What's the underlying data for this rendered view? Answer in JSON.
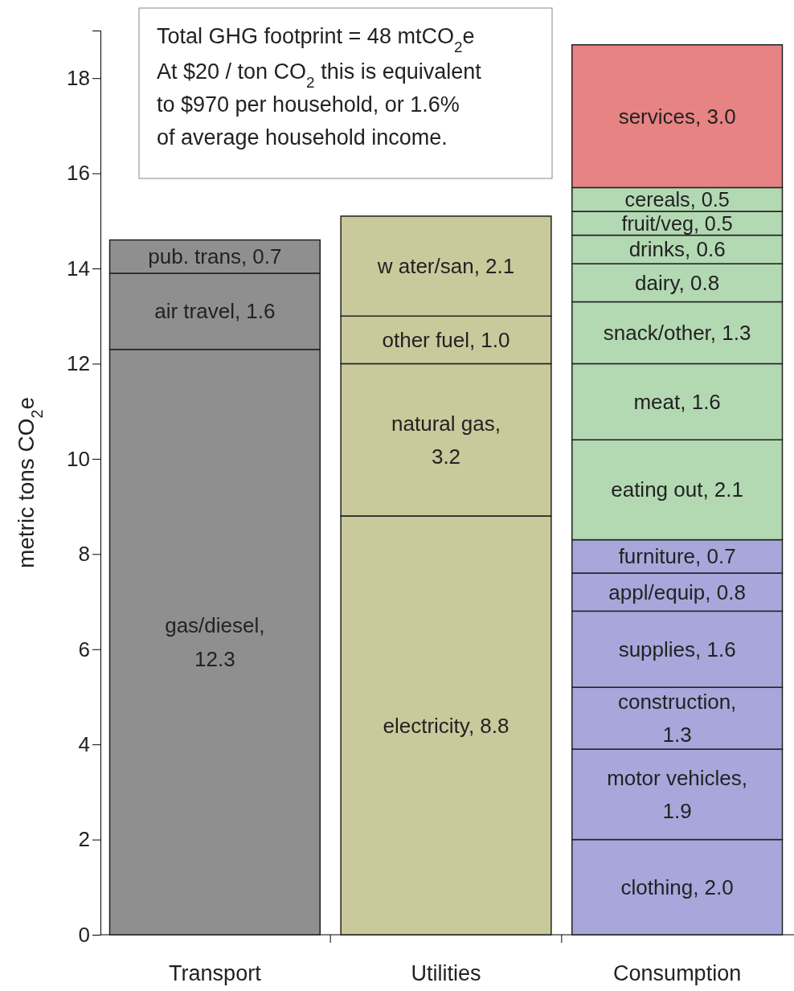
{
  "chart_data": {
    "type": "bar",
    "stacked": true,
    "categories": [
      "Transport",
      "Utilities",
      "Consumption"
    ],
    "ylabel": "metric tons CO$_{2}$e",
    "ylim": [
      0,
      19
    ],
    "yticks": [
      0,
      2,
      4,
      6,
      8,
      10,
      12,
      14,
      16,
      18
    ],
    "grid": false,
    "annotations": [
      "Total GHG footprint = 48 mtCO$_{2}$e",
      "At $20 / ton CO$_{2}$ this is equivalent\nto $970 per household, or 1.6%\nof average household income."
    ],
    "series": [
      {
        "color": "#8f8f8f",
        "values": [
          12.3,
          null,
          null
        ],
        "value_labels": [
          "gas/diesel,\n12.3",
          null,
          null
        ]
      },
      {
        "color": "#8f8f8f",
        "values": [
          1.6,
          null,
          null
        ],
        "value_labels": [
          "air travel,  1.6",
          null,
          null
        ]
      },
      {
        "color": "#8f8f8f",
        "values": [
          0.7,
          null,
          null
        ],
        "value_labels": [
          "pub. trans,  0.7",
          null,
          null
        ]
      },
      {
        "color": "#c9c99c",
        "values": [
          null,
          8.8,
          null
        ],
        "value_labels": [
          null,
          "electricity,  8.8",
          null
        ]
      },
      {
        "color": "#c9c99c",
        "values": [
          null,
          3.2,
          null
        ],
        "value_labels": [
          null,
          "natural gas,\n3.2",
          null
        ]
      },
      {
        "color": "#c9c99c",
        "values": [
          null,
          1.0,
          null
        ],
        "value_labels": [
          null,
          "other fuel,  1.0",
          null
        ]
      },
      {
        "color": "#c9c99c",
        "values": [
          null,
          2.1,
          null
        ],
        "value_labels": [
          null,
          "w ater/san,  2.1",
          null
        ]
      },
      {
        "color": "#a7a7dc",
        "values": [
          null,
          null,
          2.0
        ],
        "value_labels": [
          null,
          null,
          "clothing,  2.0"
        ]
      },
      {
        "color": "#a7a7dc",
        "values": [
          null,
          null,
          1.9
        ],
        "value_labels": [
          null,
          null,
          "motor vehicles,\n1.9"
        ]
      },
      {
        "color": "#a7a7dc",
        "values": [
          null,
          null,
          1.3
        ],
        "value_labels": [
          null,
          null,
          "construction,\n1.3"
        ]
      },
      {
        "color": "#a7a7dc",
        "values": [
          null,
          null,
          1.6
        ],
        "value_labels": [
          null,
          null,
          "supplies,  1.6"
        ]
      },
      {
        "color": "#a7a7dc",
        "values": [
          null,
          null,
          0.8
        ],
        "value_labels": [
          null,
          null,
          "appl/equip,  0.8"
        ]
      },
      {
        "color": "#a7a7dc",
        "values": [
          null,
          null,
          0.7
        ],
        "value_labels": [
          null,
          null,
          "furniture,  0.7"
        ]
      },
      {
        "color": "#b3d9b3",
        "values": [
          null,
          null,
          2.1
        ],
        "value_labels": [
          null,
          null,
          "eating out,  2.1"
        ]
      },
      {
        "color": "#b3d9b3",
        "values": [
          null,
          null,
          1.6
        ],
        "value_labels": [
          null,
          null,
          "meat,  1.6"
        ]
      },
      {
        "color": "#b3d9b3",
        "values": [
          null,
          null,
          1.3
        ],
        "value_labels": [
          null,
          null,
          "snack/other, 1.3"
        ]
      },
      {
        "color": "#b3d9b3",
        "values": [
          null,
          null,
          0.8
        ],
        "value_labels": [
          null,
          null,
          "dairy, 0.8"
        ]
      },
      {
        "color": "#b3d9b3",
        "values": [
          null,
          null,
          0.6
        ],
        "value_labels": [
          null,
          null,
          "drinks, 0.6"
        ]
      },
      {
        "color": "#b3d9b3",
        "values": [
          null,
          null,
          0.5
        ],
        "value_labels": [
          null,
          null,
          "fruit/veg, 0.5"
        ]
      },
      {
        "color": "#b3d9b3",
        "values": [
          null,
          null,
          0.5
        ],
        "value_labels": [
          null,
          null,
          "cereals, 0.5"
        ]
      },
      {
        "color": "#e88383",
        "values": [
          null,
          null,
          3.0
        ],
        "value_labels": [
          null,
          null,
          "services,  3.0"
        ]
      }
    ]
  }
}
